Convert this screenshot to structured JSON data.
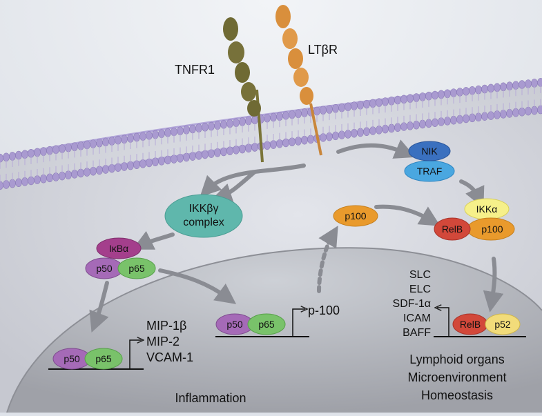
{
  "receptors": {
    "tnfr1": "TNFR1",
    "ltbr": "LTβR"
  },
  "cytoplasm": {
    "ikk_complex_line1": "IKKβγ",
    "ikk_complex_line2": "complex",
    "nik": "NIK",
    "traf": "TRAF",
    "ikka": "IKKα",
    "relb": "RelB",
    "p100_complex": "p100",
    "p100_free": "p100",
    "ikba": "IκBα",
    "p50": "p50",
    "p65": "p65"
  },
  "nucleus": {
    "left_p50": "p50",
    "left_p65": "p65",
    "left_genes": [
      "MIP-1β",
      "MIP-2",
      "VCAM-1"
    ],
    "mid_p50": "p50",
    "mid_p65": "p65",
    "mid_gene": "p-100",
    "right_relb": "RelB",
    "right_p52": "p52",
    "right_genes": [
      "SLC",
      "ELC",
      "SDF-1α",
      "ICAM",
      "BAFF"
    ]
  },
  "outcomes": {
    "inflammation": "Inflammation",
    "lymphoid": [
      "Lymphoid organs",
      "Microenvironment",
      "Homeostasis"
    ]
  },
  "colors": {
    "extracellular": "#e6e9ef",
    "cytoplasm": "#d2d4db",
    "nucleus": "#b9bbc2",
    "membrane": "#a99ad0",
    "tnfr1": "#6f6a34",
    "ltbr": "#d98f3c",
    "ikk": "#5fb7ac",
    "nik": "#3a70bf",
    "traf": "#4aa7e0",
    "ikka": "#f6f08a",
    "relb": "#d2483a",
    "p100": "#e99a2c",
    "ikba": "#a43f8c",
    "p50": "#a56ab7",
    "p65": "#79c26a",
    "p52": "#f2dc7a",
    "arrow": "#8a8c93"
  }
}
